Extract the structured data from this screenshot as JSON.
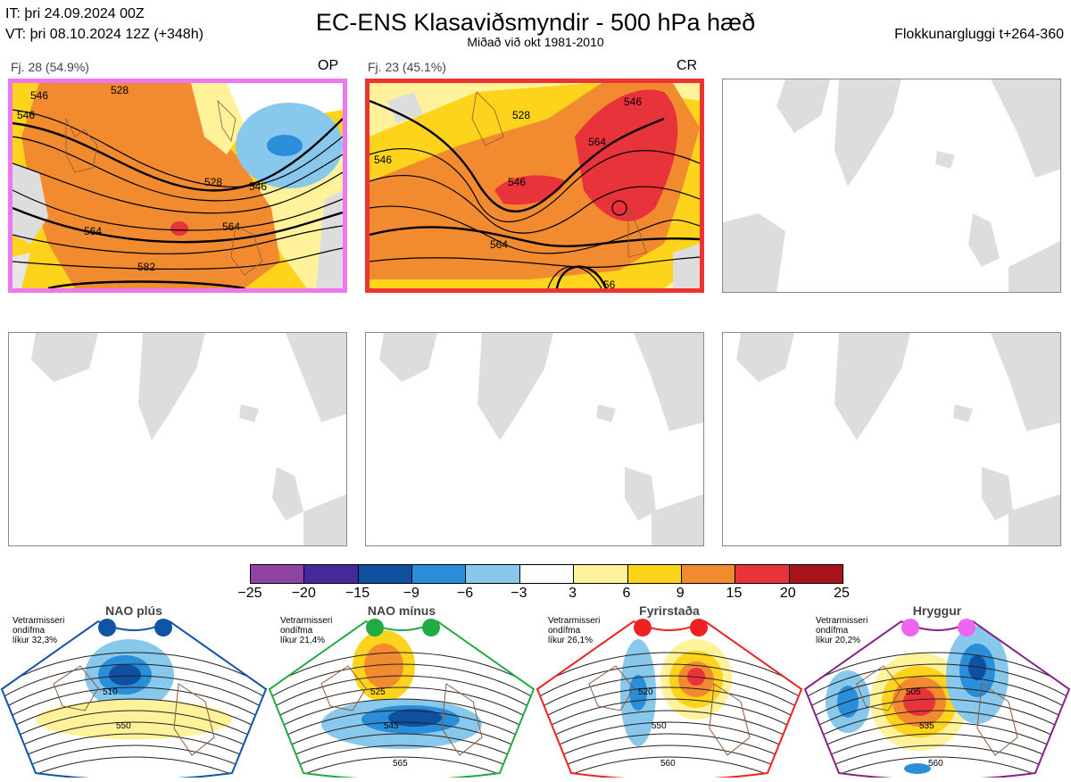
{
  "header": {
    "it_line": "IT: þri 24.09.2024 00Z",
    "vt_line": "VT: þri 08.10.2024 12Z  (+348h)",
    "title": "EC-ENS Klasaviðsmyndir - 500 hPa hæð",
    "subtitle": "Miðað við okt 1981-2010",
    "window": "Flokkunargluggi t+264-360"
  },
  "panels": [
    {
      "label": "Fj. 28 (54.9%)",
      "code": "OP",
      "border_color": "#ee77ee"
    },
    {
      "label": "Fj. 23 (45.1%)",
      "code": "CR",
      "border_color": "#ee3333"
    }
  ],
  "contour_labels": {
    "panel1": [
      "546",
      "528",
      "546",
      "528",
      "546",
      "564",
      "564",
      "582"
    ],
    "panel2": [
      "546",
      "528",
      "546",
      "564",
      "546",
      "564",
      "56"
    ]
  },
  "colorbar": {
    "ticks": [
      "−25",
      "−20",
      "−15",
      "−9",
      "−6",
      "−3",
      "3",
      "6",
      "9",
      "15",
      "20",
      "25"
    ],
    "colors": [
      "#8e44a0",
      "#45289a",
      "#1050a0",
      "#2a8fd8",
      "#88c8ec",
      "#ffffff",
      "#fff29a",
      "#fdd31c",
      "#f28a30",
      "#e8333a",
      "#a8141c"
    ]
  },
  "regimes": [
    {
      "name": "NAO plús",
      "info": [
        "Vetrarmisseri",
        "ondífma",
        "líkur 32,3%"
      ],
      "color": "#1055a5",
      "dot_color": "#1055a5",
      "labels": [
        "510",
        "550"
      ]
    },
    {
      "name": "NAO mínus",
      "info": [
        "Vetrarmisseri",
        "ondífma",
        "líkur 21,4%"
      ],
      "color": "#22aa44",
      "dot_color": "#22aa44",
      "labels": [
        "525",
        "545",
        "565"
      ]
    },
    {
      "name": "Fyrirstaða",
      "info": [
        "Vetrarmisseri",
        "ondífma",
        "líkur 26,1%"
      ],
      "color": "#ee2222",
      "dot_color": "#ee2222",
      "labels": [
        "520",
        "550",
        "560"
      ]
    },
    {
      "name": "Hryggur",
      "info": [
        "Vetrarmisseri",
        "ondífma",
        "líkur 20,2%"
      ],
      "color": "#882288",
      "dot_color": "#ee66ee",
      "labels": [
        "505",
        "535",
        "560"
      ]
    }
  ]
}
